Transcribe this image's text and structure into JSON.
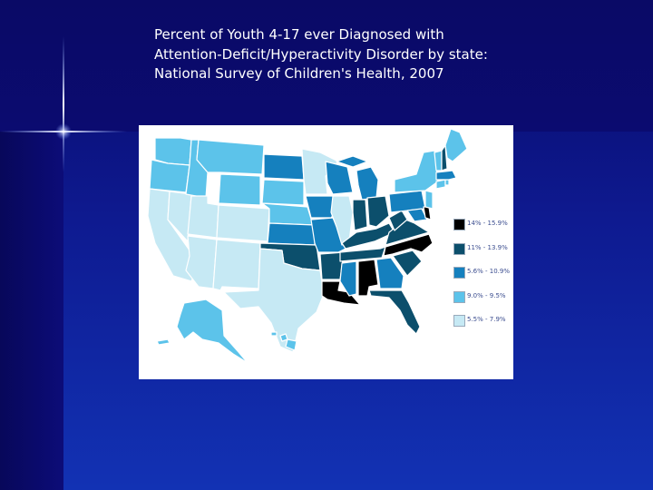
{
  "slide": {
    "title_lines": [
      "Percent of Youth 4-17 ever Diagnosed with",
      "Attention-Deficit/Hyperactivity Disorder by state:",
      "National Survey of Children's Health, 2007"
    ]
  },
  "map": {
    "legend": [
      {
        "label": "14% - 15.9%",
        "color": "#000000"
      },
      {
        "label": "11% - 13.9%",
        "color": "#0c4f6c"
      },
      {
        "label": "5.6% - 10.9%",
        "color": "#1580be"
      },
      {
        "label": "9.0% - 9.5%",
        "color": "#5cc3ea"
      },
      {
        "label": "5.5% - 7.9%",
        "color": "#c6e9f4"
      }
    ]
  }
}
